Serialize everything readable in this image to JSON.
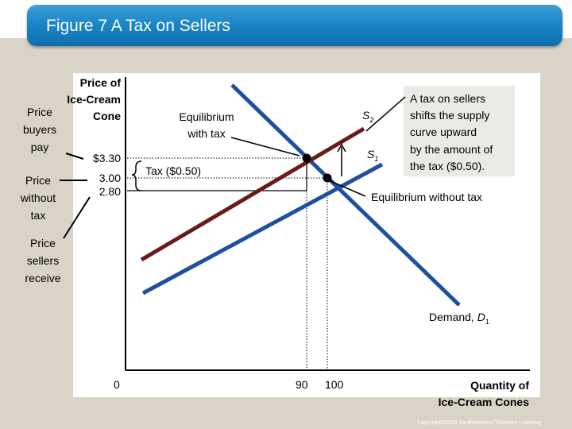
{
  "slide": {
    "title": "Figure 7 A Tax on Sellers",
    "copyright": "Copyright©2003  Southwestern/Thomson Learning"
  },
  "axes": {
    "y_label_line1": "Price of",
    "y_label_line2": "Ice-Cream",
    "y_label_line3": "Cone",
    "x_label_line1": "Quantity of",
    "x_label_line2": "Ice-Cream Cones",
    "origin": "0",
    "x_ticks": [
      "90",
      "100"
    ],
    "y_ticks": [
      "$3.30",
      "3.00",
      "2.80"
    ]
  },
  "side_labels": {
    "buyers_line1": "Price",
    "buyers_line2": "buyers",
    "buyers_line3": "pay",
    "without_line1": "Price",
    "without_line2": "without",
    "without_line3": "tax",
    "sellers_line1": "Price",
    "sellers_line2": "sellers",
    "sellers_line3": "receive"
  },
  "annotations": {
    "eq_with_tax_line1": "Equilibrium",
    "eq_with_tax_line2": "with tax",
    "eq_without_tax": "Equilibrium without tax",
    "tax_label": "Tax ($0.50)",
    "s2_letter": "S",
    "s2_sub": "2",
    "s1_letter": "S",
    "s1_sub": "1",
    "demand_text": "Demand, ",
    "demand_letter": "D",
    "demand_sub": "1"
  },
  "note": {
    "line1": "A tax on sellers",
    "line2": "shifts the supply",
    "line3": "curve upward",
    "line4": "by the amount of",
    "line5": "the tax ($0.50)."
  },
  "colors": {
    "demand": "#1f4fa3",
    "supply1": "#1f4fa3",
    "supply2": "#6b1a1a",
    "title_bar": "#1b86c8"
  },
  "chart_data": {
    "type": "line",
    "series": [
      {
        "name": "Demand, D1",
        "points": [
          [
            90,
            3.3
          ],
          [
            100,
            3.0
          ]
        ]
      },
      {
        "name": "S1",
        "points": [
          [
            90,
            2.8
          ],
          [
            100,
            3.0
          ]
        ]
      },
      {
        "name": "S2",
        "points": [
          [
            90,
            3.3
          ],
          [
            100,
            3.5
          ]
        ]
      }
    ],
    "equilibrium_with_tax": {
      "quantity": 90,
      "price_buyers_pay": 3.3,
      "price_sellers_receive": 2.8
    },
    "equilibrium_without_tax": {
      "quantity": 100,
      "price": 3.0
    },
    "tax": 0.5
  }
}
